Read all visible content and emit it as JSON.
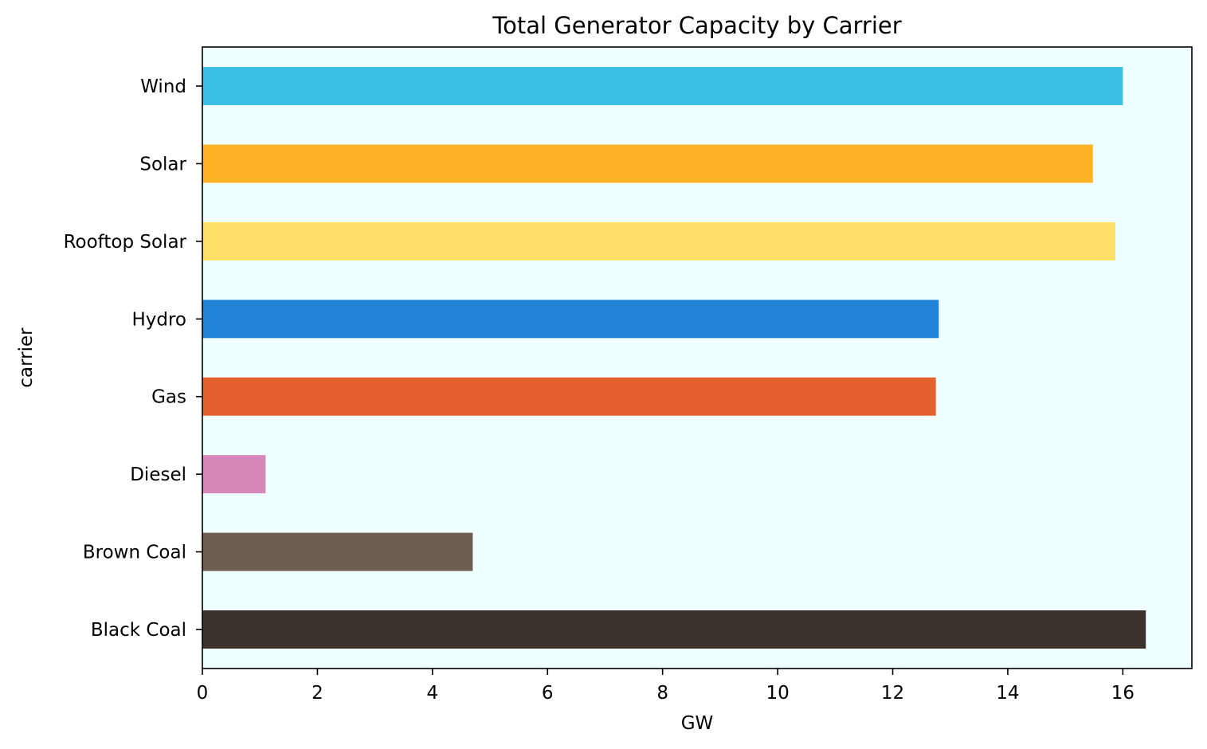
{
  "chart_data": {
    "type": "bar",
    "orientation": "horizontal",
    "title": "Total Generator Capacity by Carrier",
    "xlabel": "GW",
    "ylabel": "carrier",
    "xlim": [
      0,
      17.2
    ],
    "xticks": [
      0,
      2,
      4,
      6,
      8,
      10,
      12,
      14,
      16
    ],
    "categories": [
      "Black Coal",
      "Brown Coal",
      "Diesel",
      "Gas",
      "Hydro",
      "Rooftop Solar",
      "Solar",
      "Wind"
    ],
    "values": [
      16.4,
      4.7,
      1.1,
      12.75,
      12.8,
      15.87,
      15.48,
      16.0
    ],
    "colors": [
      "#3b322e",
      "#6f5e50",
      "#d688bb",
      "#e5612e",
      "#1f82d5",
      "#ffe066",
      "#ffb327",
      "#3bbfe4"
    ],
    "plot_background": "#f0ffff",
    "grid": false,
    "legend": "none"
  }
}
